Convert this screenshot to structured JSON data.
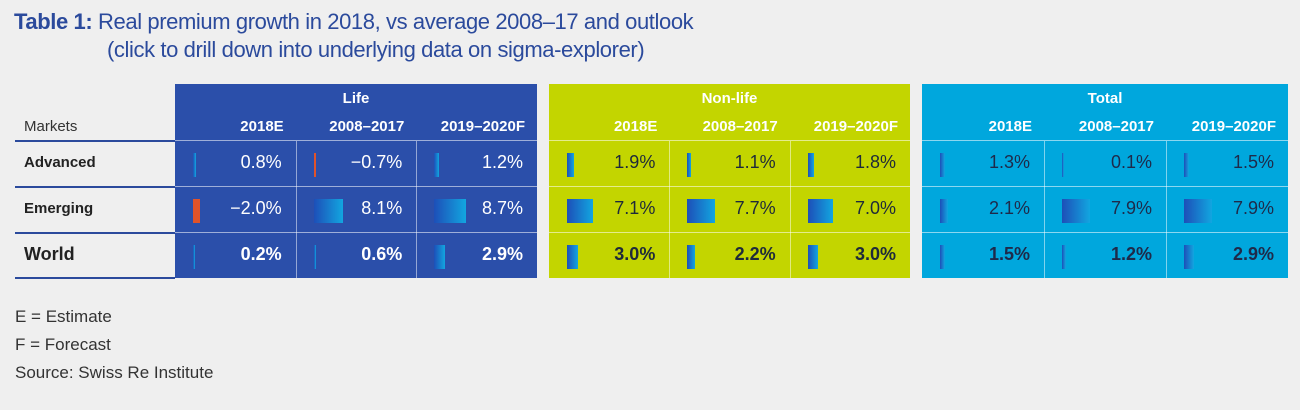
{
  "title": {
    "label": "Table 1:",
    "line1": "Real premium growth in 2018, vs average 2008–17 and outlook",
    "line2": "(click to drill down into underlying data on sigma-explorer)"
  },
  "markets_header": "Markets",
  "rows": [
    "Advanced",
    "Emerging",
    "World"
  ],
  "columns": [
    "2018E",
    "2008–2017",
    "2019–2020F"
  ],
  "colors": {
    "life": "#2b4faa",
    "nonlife": "#c3d500",
    "total": "#00a7dd",
    "negative": "#e0532a",
    "title": "#2b4a9c"
  },
  "panels": [
    {
      "name": "Life",
      "cells": [
        [
          {
            "v": 0.8,
            "t": "0.8%"
          },
          {
            "v": -0.7,
            "t": "−0.7%"
          },
          {
            "v": 1.2,
            "t": "1.2%"
          }
        ],
        [
          {
            "v": -2.0,
            "t": "−2.0%"
          },
          {
            "v": 8.1,
            "t": "8.1%"
          },
          {
            "v": 8.7,
            "t": "8.7%"
          }
        ],
        [
          {
            "v": 0.2,
            "t": "0.2%"
          },
          {
            "v": 0.6,
            "t": "0.6%"
          },
          {
            "v": 2.9,
            "t": "2.9%"
          }
        ]
      ]
    },
    {
      "name": "Non-life",
      "cells": [
        [
          {
            "v": 1.9,
            "t": "1.9%"
          },
          {
            "v": 1.1,
            "t": "1.1%"
          },
          {
            "v": 1.8,
            "t": "1.8%"
          }
        ],
        [
          {
            "v": 7.1,
            "t": "7.1%"
          },
          {
            "v": 7.7,
            "t": "7.7%"
          },
          {
            "v": 7.0,
            "t": "7.0%"
          }
        ],
        [
          {
            "v": 3.0,
            "t": "3.0%"
          },
          {
            "v": 2.2,
            "t": "2.2%"
          },
          {
            "v": 3.0,
            "t": "3.0%"
          }
        ]
      ]
    },
    {
      "name": "Total",
      "cells": [
        [
          {
            "v": 1.3,
            "t": "1.3%"
          },
          {
            "v": 0.1,
            "t": "0.1%"
          },
          {
            "v": 1.5,
            "t": "1.5%"
          }
        ],
        [
          {
            "v": 2.1,
            "t": "2.1%"
          },
          {
            "v": 7.9,
            "t": "7.9%"
          },
          {
            "v": 7.9,
            "t": "7.9%"
          }
        ],
        [
          {
            "v": 1.5,
            "t": "1.5%"
          },
          {
            "v": 1.2,
            "t": "1.2%"
          },
          {
            "v": 2.9,
            "t": "2.9%"
          }
        ]
      ]
    }
  ],
  "notes": [
    "E = Estimate",
    "F = Forecast",
    "Source: Swiss Re Institute"
  ]
}
